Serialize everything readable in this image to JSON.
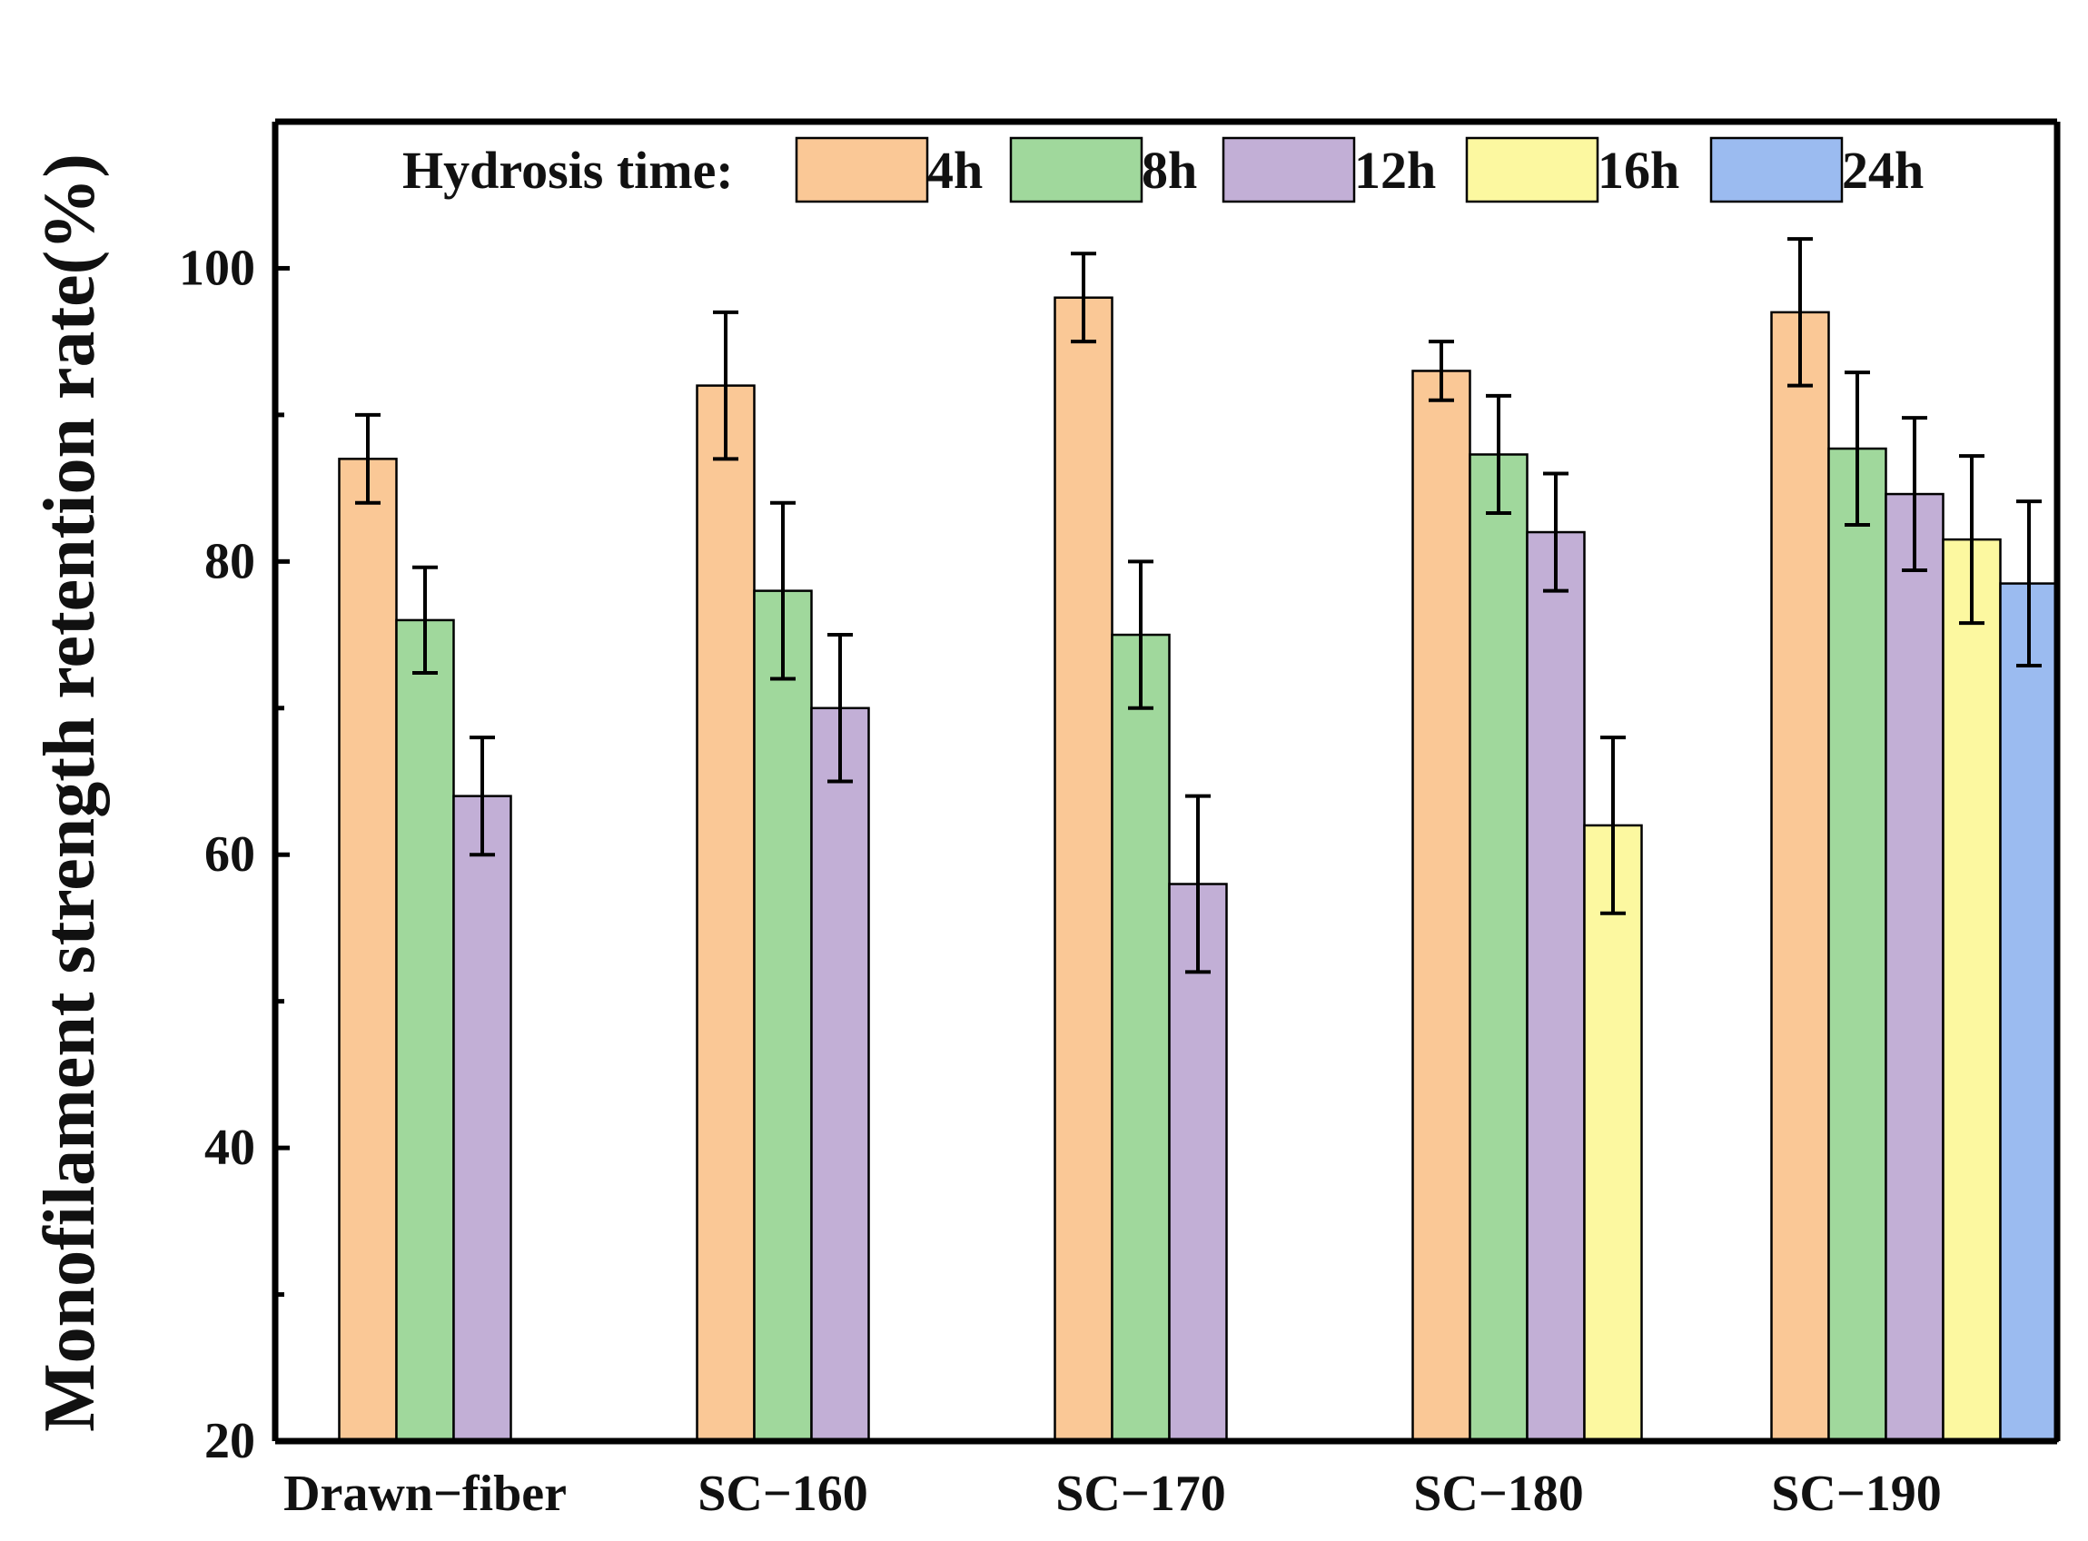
{
  "chart_data": {
    "type": "bar",
    "title": "",
    "xlabel": "",
    "ylabel": "Monofilament strength retention rate(%)",
    "ylim": [
      20,
      110
    ],
    "yticks": [
      "20",
      "40",
      "60",
      "80",
      "100"
    ],
    "categories": [
      "Drawn−fiber",
      "SC−160",
      "SC−170",
      "SC−180",
      "SC−190"
    ],
    "legend_title": "Hydrosis time:",
    "legend_position": "top",
    "series": [
      {
        "name": "4h",
        "color": "#FAC896",
        "values": [
          87,
          92,
          98,
          93,
          97
        ],
        "errors": [
          3,
          5,
          3,
          2,
          5
        ]
      },
      {
        "name": "8h",
        "color": "#A0D89C",
        "values": [
          76,
          78,
          75,
          87.3,
          87.7
        ],
        "errors": [
          3.6,
          6,
          5,
          4,
          5.2
        ]
      },
      {
        "name": "12h",
        "color": "#C2AFD6",
        "values": [
          64,
          70,
          58,
          82,
          84.6
        ],
        "errors": [
          4,
          5,
          6,
          4,
          5.2
        ]
      },
      {
        "name": "16h",
        "color": "#FCF8A0",
        "values": [
          null,
          null,
          null,
          62,
          81.5
        ],
        "errors": [
          null,
          null,
          null,
          6,
          5.7
        ]
      },
      {
        "name": "24h",
        "color": "#9BBBF0",
        "values": [
          null,
          null,
          null,
          null,
          78.5
        ],
        "errors": [
          null,
          null,
          null,
          null,
          5.6
        ]
      }
    ]
  }
}
